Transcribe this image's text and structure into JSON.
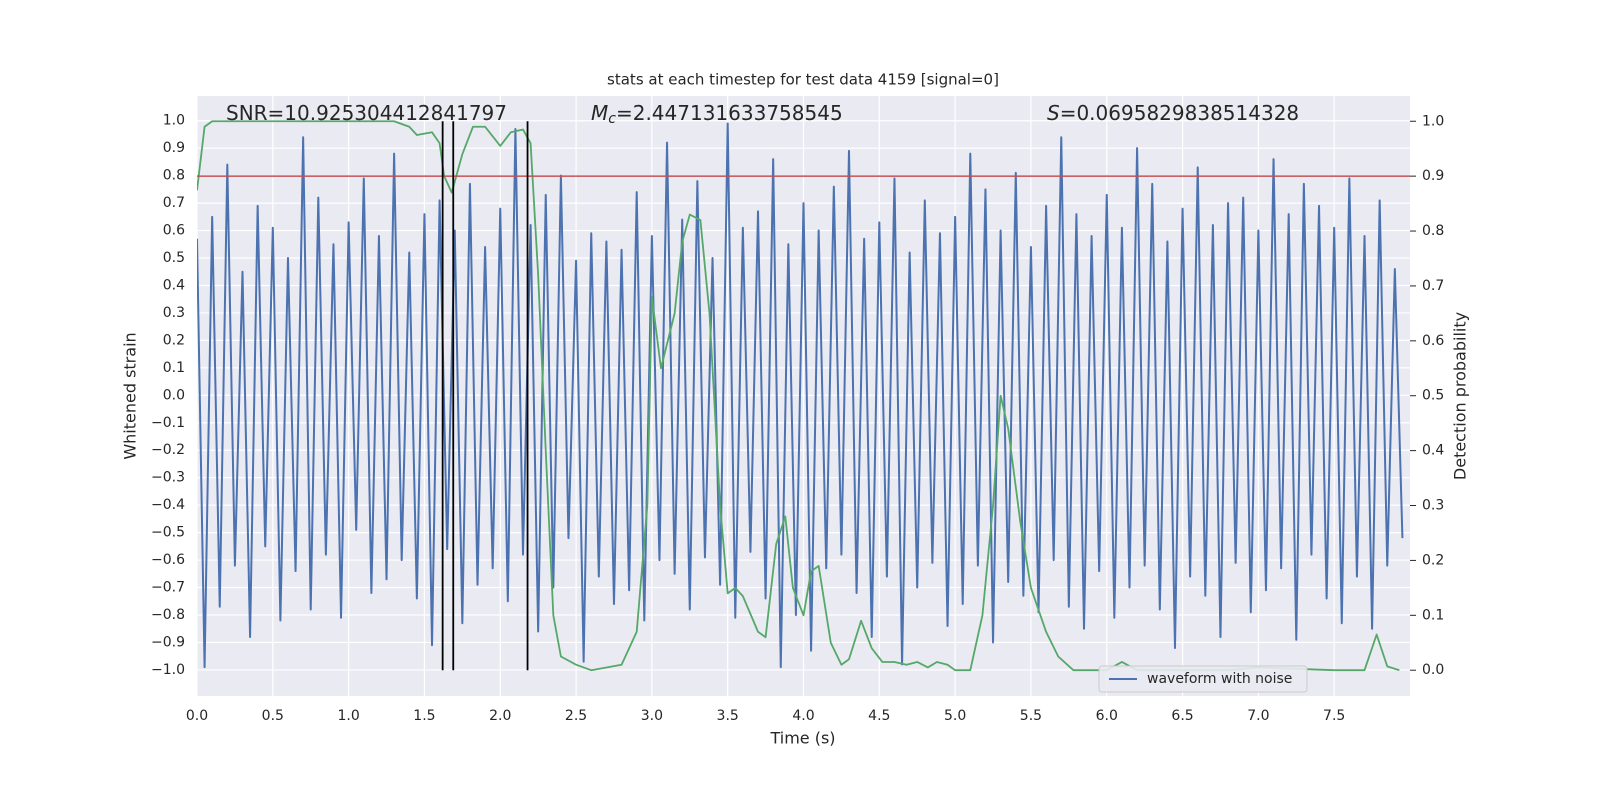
{
  "chart_data": {
    "type": "line",
    "title": "stats at each timestep for test data 4159 [signal=0]",
    "xlabel": "Time (s)",
    "ylabel": "Whitened strain",
    "y2label": "Detection probability",
    "xlim": [
      0,
      8
    ],
    "ylim": [
      -1.095,
      1.09
    ],
    "y2lim": [
      -0.047,
      1.046
    ],
    "xticks": [
      {
        "value": 0,
        "label": "0.0"
      },
      {
        "value": 0.5,
        "label": "0.5"
      },
      {
        "value": 1,
        "label": "1.0"
      },
      {
        "value": 1.5,
        "label": "1.5"
      },
      {
        "value": 2,
        "label": "2.0"
      },
      {
        "value": 2.5,
        "label": "2.5"
      },
      {
        "value": 3,
        "label": "3.0"
      },
      {
        "value": 3.5,
        "label": "3.5"
      },
      {
        "value": 4,
        "label": "4.0"
      },
      {
        "value": 4.5,
        "label": "4.5"
      },
      {
        "value": 5,
        "label": "5.0"
      },
      {
        "value": 5.5,
        "label": "5.5"
      },
      {
        "value": 6,
        "label": "6.0"
      },
      {
        "value": 6.5,
        "label": "6.5"
      },
      {
        "value": 7,
        "label": "7.0"
      },
      {
        "value": 7.5,
        "label": "7.5"
      }
    ],
    "yticks": [
      {
        "value": -1,
        "label": "−1.0"
      },
      {
        "value": -0.9,
        "label": "−0.9"
      },
      {
        "value": -0.8,
        "label": "−0.8"
      },
      {
        "value": -0.7,
        "label": "−0.7"
      },
      {
        "value": -0.6,
        "label": "−0.6"
      },
      {
        "value": -0.5,
        "label": "−0.5"
      },
      {
        "value": -0.4,
        "label": "−0.4"
      },
      {
        "value": -0.3,
        "label": "−0.3"
      },
      {
        "value": -0.2,
        "label": "−0.2"
      },
      {
        "value": -0.1,
        "label": "−0.1"
      },
      {
        "value": 0,
        "label": "0.0"
      },
      {
        "value": 0.1,
        "label": "0.1"
      },
      {
        "value": 0.2,
        "label": "0.2"
      },
      {
        "value": 0.3,
        "label": "0.3"
      },
      {
        "value": 0.4,
        "label": "0.4"
      },
      {
        "value": 0.5,
        "label": "0.5"
      },
      {
        "value": 0.6,
        "label": "0.6"
      },
      {
        "value": 0.7,
        "label": "0.7"
      },
      {
        "value": 0.8,
        "label": "0.8"
      },
      {
        "value": 0.9,
        "label": "0.9"
      },
      {
        "value": 1,
        "label": "1.0"
      }
    ],
    "y2ticks": [
      {
        "value": 0,
        "label": "0.0"
      },
      {
        "value": 0.1,
        "label": "0.1"
      },
      {
        "value": 0.2,
        "label": "0.2"
      },
      {
        "value": 0.3,
        "label": "0.3"
      },
      {
        "value": 0.4,
        "label": "0.4"
      },
      {
        "value": 0.5,
        "label": "0.5"
      },
      {
        "value": 0.6,
        "label": "0.6"
      },
      {
        "value": 0.7,
        "label": "0.7"
      },
      {
        "value": 0.8,
        "label": "0.8"
      },
      {
        "value": 0.9,
        "label": "0.9"
      },
      {
        "value": 1,
        "label": "1.0"
      }
    ],
    "grid": true,
    "legend": "lower right",
    "annotations": [
      {
        "text": "SNR=10.925304412841797"
      },
      {
        "symbol": "M",
        "sub": "c",
        "text": "=2.447131633758545"
      },
      {
        "symbol": "S",
        "text": "=0.0695829838514328"
      }
    ],
    "hlines": [
      {
        "value": 0.9,
        "axis": "y2",
        "color": "#c44e52"
      }
    ],
    "vlines": {
      "x": [
        1.62,
        1.69,
        2.18
      ],
      "color": "#000000"
    },
    "series": [
      {
        "name": "waveform with noise",
        "color": "#4c72b0",
        "x": [
          0,
          0.05,
          0.1,
          0.15,
          0.2,
          0.25,
          0.3,
          0.35,
          0.4,
          0.45,
          0.5,
          0.55,
          0.6,
          0.65,
          0.7,
          0.75,
          0.8,
          0.85,
          0.9,
          0.95,
          1,
          1.05,
          1.1,
          1.15,
          1.2,
          1.25,
          1.3,
          1.35,
          1.4,
          1.45,
          1.5,
          1.55,
          1.6,
          1.65,
          1.7,
          1.75,
          1.8,
          1.85,
          1.9,
          1.95,
          2,
          2.05,
          2.1,
          2.15,
          2.2,
          2.25,
          2.3,
          2.35,
          2.4,
          2.45,
          2.5,
          2.55,
          2.6,
          2.65,
          2.7,
          2.75,
          2.8,
          2.85,
          2.9,
          2.95,
          3,
          3.05,
          3.1,
          3.15,
          3.2,
          3.25,
          3.3,
          3.35,
          3.4,
          3.45,
          3.5,
          3.55,
          3.6,
          3.65,
          3.7,
          3.75,
          3.8,
          3.85,
          3.9,
          3.95,
          4,
          4.05,
          4.1,
          4.15,
          4.2,
          4.25,
          4.3,
          4.35,
          4.4,
          4.45,
          4.5,
          4.55,
          4.6,
          4.65,
          4.7,
          4.75,
          4.8,
          4.85,
          4.9,
          4.95,
          5,
          5.05,
          5.1,
          5.15,
          5.2,
          5.25,
          5.3,
          5.35,
          5.4,
          5.45,
          5.5,
          5.55,
          5.6,
          5.65,
          5.7,
          5.75,
          5.8,
          5.85,
          5.9,
          5.95,
          6,
          6.05,
          6.1,
          6.15,
          6.2,
          6.25,
          6.3,
          6.35,
          6.4,
          6.45,
          6.5,
          6.55,
          6.6,
          6.65,
          6.7,
          6.75,
          6.8,
          6.85,
          6.9,
          6.95,
          7,
          7.05,
          7.1,
          7.15,
          7.2,
          7.25,
          7.3,
          7.35,
          7.4,
          7.45,
          7.5,
          7.55,
          7.6,
          7.65,
          7.7,
          7.75,
          7.8,
          7.85,
          7.9,
          7.95
        ],
        "values": [
          0.57,
          -0.99,
          0.65,
          -0.77,
          0.84,
          -0.62,
          0.45,
          -0.88,
          0.69,
          -0.55,
          0.61,
          -0.82,
          0.5,
          -0.64,
          0.94,
          -0.78,
          0.72,
          -0.58,
          0.55,
          -0.81,
          0.63,
          -0.49,
          0.79,
          -0.72,
          0.58,
          -0.67,
          0.88,
          -0.6,
          0.52,
          -0.74,
          0.66,
          -0.91,
          0.71,
          -0.56,
          0.6,
          -0.83,
          0.77,
          -0.69,
          0.54,
          -0.63,
          0.68,
          -0.75,
          0.97,
          -0.58,
          0.62,
          -0.86,
          0.73,
          -0.7,
          0.8,
          -0.52,
          0.49,
          -0.97,
          0.59,
          -0.66,
          0.56,
          -0.76,
          0.53,
          -0.71,
          0.74,
          -0.82,
          0.58,
          -0.6,
          0.92,
          -0.65,
          0.64,
          -0.78,
          0.78,
          -0.59,
          0.5,
          -0.69,
          0.99,
          -0.81,
          0.61,
          -0.57,
          0.67,
          -0.74,
          0.86,
          -0.99,
          0.55,
          -0.8,
          0.7,
          -0.93,
          0.6,
          -0.63,
          0.76,
          -0.58,
          0.89,
          -0.72,
          0.57,
          -0.88,
          0.63,
          -0.66,
          0.79,
          -0.98,
          0.52,
          -0.7,
          0.71,
          -0.61,
          0.59,
          -0.84,
          0.65,
          -0.76,
          0.88,
          -0.62,
          0.75,
          -0.9,
          0.6,
          -0.68,
          0.81,
          -0.73,
          0.54,
          -0.79,
          0.69,
          -0.6,
          0.94,
          -0.77,
          0.66,
          -0.85,
          0.58,
          -0.64,
          0.73,
          -0.81,
          0.61,
          -0.7,
          0.9,
          -0.62,
          0.77,
          -0.78,
          0.56,
          -0.92,
          0.68,
          -0.66,
          0.83,
          -0.73,
          0.62,
          -0.88,
          0.7,
          -0.61,
          0.72,
          -0.79,
          0.6,
          -0.71,
          0.86,
          -0.63,
          0.66,
          -0.89,
          0.77,
          -0.58,
          0.69,
          -0.74,
          0.61,
          -0.83,
          0.79,
          -0.66,
          0.58,
          -0.85,
          0.71,
          -0.62,
          0.46,
          -0.52
        ]
      },
      {
        "color": "#55a868",
        "axis": "y2",
        "x": [
          0,
          0.05,
          0.1,
          0.5,
          1,
          1.3,
          1.4,
          1.45,
          1.55,
          1.6,
          1.63,
          1.68,
          1.75,
          1.82,
          1.9,
          2,
          2.07,
          2.15,
          2.2,
          2.25,
          2.3,
          2.35,
          2.4,
          2.5,
          2.6,
          2.7,
          2.8,
          2.9,
          2.97,
          3,
          3.06,
          3.15,
          3.2,
          3.25,
          3.32,
          3.38,
          3.45,
          3.5,
          3.55,
          3.6,
          3.7,
          3.75,
          3.82,
          3.88,
          3.93,
          4,
          4.05,
          4.1,
          4.18,
          4.25,
          4.3,
          4.38,
          4.45,
          4.52,
          4.6,
          4.68,
          4.75,
          4.82,
          4.88,
          4.95,
          5,
          5.1,
          5.18,
          5.25,
          5.3,
          5.35,
          5.43,
          5.5,
          5.6,
          5.68,
          5.78,
          6,
          6.1,
          6.2,
          6.3,
          6.5,
          6.8,
          7,
          7.2,
          7.5,
          7.7,
          7.78,
          7.85,
          7.93
        ],
        "values": [
          0.874,
          0.99,
          1,
          1,
          1,
          1,
          0.99,
          0.975,
          0.98,
          0.96,
          0.9,
          0.87,
          0.94,
          0.99,
          0.99,
          0.955,
          0.98,
          0.985,
          0.96,
          0.72,
          0.4,
          0.1,
          0.025,
          0.01,
          0,
          0.005,
          0.01,
          0.07,
          0.3,
          0.68,
          0.55,
          0.65,
          0.78,
          0.83,
          0.82,
          0.65,
          0.3,
          0.14,
          0.15,
          0.135,
          0.07,
          0.06,
          0.23,
          0.28,
          0.15,
          0.1,
          0.18,
          0.19,
          0.05,
          0.01,
          0.02,
          0.09,
          0.04,
          0.015,
          0.015,
          0.01,
          0.015,
          0.005,
          0.015,
          0.01,
          0,
          0,
          0.1,
          0.3,
          0.5,
          0.44,
          0.27,
          0.15,
          0.07,
          0.025,
          0,
          0,
          0.015,
          0,
          0,
          0,
          0,
          0.005,
          0.003,
          0,
          0,
          0.065,
          0.007,
          0
        ]
      }
    ]
  }
}
